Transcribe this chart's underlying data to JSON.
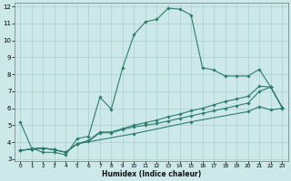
{
  "xlabel": "Humidex (Indice chaleur)",
  "bg_color": "#cce8e8",
  "grid_color": "#aacfcf",
  "line_color": "#2e7d6e",
  "xlim": [
    0,
    23
  ],
  "ylim": [
    3,
    12
  ],
  "xticks": [
    0,
    1,
    2,
    3,
    4,
    5,
    6,
    7,
    8,
    9,
    10,
    11,
    12,
    13,
    14,
    15,
    16,
    17,
    18,
    19,
    20,
    21,
    22,
    23
  ],
  "yticks": [
    3,
    4,
    5,
    6,
    7,
    8,
    9,
    10,
    11,
    12
  ],
  "curve1_x": [
    0,
    1,
    2,
    3,
    4,
    5,
    6,
    7,
    8,
    9,
    10,
    11,
    12,
    13,
    14,
    15,
    16,
    17,
    18,
    19,
    20,
    21,
    22,
    23
  ],
  "curve1_y": [
    5.2,
    3.65,
    3.4,
    3.4,
    3.25,
    4.2,
    4.35,
    6.65,
    5.95,
    8.4,
    10.35,
    11.1,
    11.25,
    11.9,
    11.85,
    11.5,
    8.4,
    8.25,
    7.9,
    7.9,
    7.9,
    8.3,
    7.25,
    6.05
  ],
  "curve2_x": [
    0,
    1,
    2,
    3,
    4,
    5,
    6,
    7,
    8,
    9,
    10,
    11,
    12,
    13,
    14,
    15,
    16,
    17,
    18,
    19,
    20,
    21,
    22,
    23
  ],
  "curve2_y": [
    3.5,
    3.6,
    3.65,
    3.55,
    3.4,
    3.9,
    4.05,
    4.55,
    4.55,
    4.75,
    4.9,
    5.0,
    5.1,
    5.25,
    5.4,
    5.55,
    5.7,
    5.85,
    6.0,
    6.15,
    6.3,
    7.0,
    7.25,
    6.05
  ],
  "curve3_x": [
    0,
    1,
    2,
    3,
    4,
    5,
    6,
    7,
    8,
    9,
    10,
    11,
    12,
    13,
    14,
    15,
    16,
    17,
    18,
    19,
    20,
    21,
    22,
    23
  ],
  "curve3_y": [
    3.5,
    3.6,
    3.65,
    3.55,
    3.4,
    3.9,
    4.1,
    4.6,
    4.6,
    4.8,
    5.0,
    5.15,
    5.3,
    5.5,
    5.65,
    5.85,
    6.0,
    6.2,
    6.4,
    6.55,
    6.7,
    7.3,
    7.25,
    6.05
  ],
  "curve4_x": [
    0,
    1,
    2,
    3,
    4,
    5,
    10,
    15,
    20,
    21,
    22,
    23
  ],
  "curve4_y": [
    3.5,
    3.6,
    3.65,
    3.55,
    3.4,
    3.9,
    4.5,
    5.2,
    5.8,
    6.1,
    5.9,
    6.0
  ]
}
